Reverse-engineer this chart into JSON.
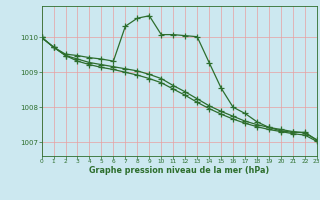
{
  "title": "Graphe pression niveau de la mer (hPa)",
  "bg_color": "#cce8f0",
  "line_color": "#2d6e2d",
  "xlim": [
    0,
    23
  ],
  "ylim": [
    1006.6,
    1010.9
  ],
  "yticks": [
    1007,
    1008,
    1009,
    1010
  ],
  "xticks": [
    0,
    1,
    2,
    3,
    4,
    5,
    6,
    7,
    8,
    9,
    10,
    11,
    12,
    13,
    14,
    15,
    16,
    17,
    18,
    19,
    20,
    21,
    22,
    23
  ],
  "line1_x": [
    0,
    1,
    2,
    3,
    4,
    5,
    6,
    7,
    8,
    9,
    10,
    11,
    12,
    13,
    14,
    15,
    16,
    17,
    18,
    19,
    20,
    21,
    22,
    23
  ],
  "line1_y": [
    1010.0,
    1009.72,
    1009.52,
    1009.48,
    1009.42,
    1009.38,
    1009.32,
    1010.32,
    1010.55,
    1010.62,
    1010.08,
    1010.08,
    1010.05,
    1010.02,
    1009.28,
    1008.55,
    1008.0,
    1007.82,
    1007.58,
    1007.42,
    1007.32,
    1007.28,
    1007.28,
    1007.06
  ],
  "line2_x": [
    0,
    1,
    2,
    3,
    4,
    5,
    6,
    7,
    8,
    9,
    10,
    11,
    12,
    13,
    14,
    15,
    16,
    17,
    18,
    19,
    20,
    21,
    22,
    23
  ],
  "line2_y": [
    1010.0,
    1009.72,
    1009.48,
    1009.38,
    1009.28,
    1009.22,
    1009.16,
    1009.1,
    1009.04,
    1008.94,
    1008.82,
    1008.62,
    1008.44,
    1008.24,
    1008.04,
    1007.88,
    1007.74,
    1007.6,
    1007.5,
    1007.42,
    1007.36,
    1007.3,
    1007.26,
    1007.06
  ],
  "line3_x": [
    0,
    1,
    2,
    3,
    4,
    5,
    6,
    7,
    8,
    9,
    10,
    11,
    12,
    13,
    14,
    15,
    16,
    17,
    18,
    19,
    20,
    21,
    22,
    23
  ],
  "line3_y": [
    1010.0,
    1009.72,
    1009.48,
    1009.32,
    1009.22,
    1009.14,
    1009.08,
    1009.0,
    1008.92,
    1008.82,
    1008.7,
    1008.52,
    1008.34,
    1008.14,
    1007.96,
    1007.8,
    1007.66,
    1007.54,
    1007.44,
    1007.36,
    1007.3,
    1007.24,
    1007.2,
    1007.02
  ],
  "figsize": [
    3.2,
    2.0
  ],
  "dpi": 100
}
